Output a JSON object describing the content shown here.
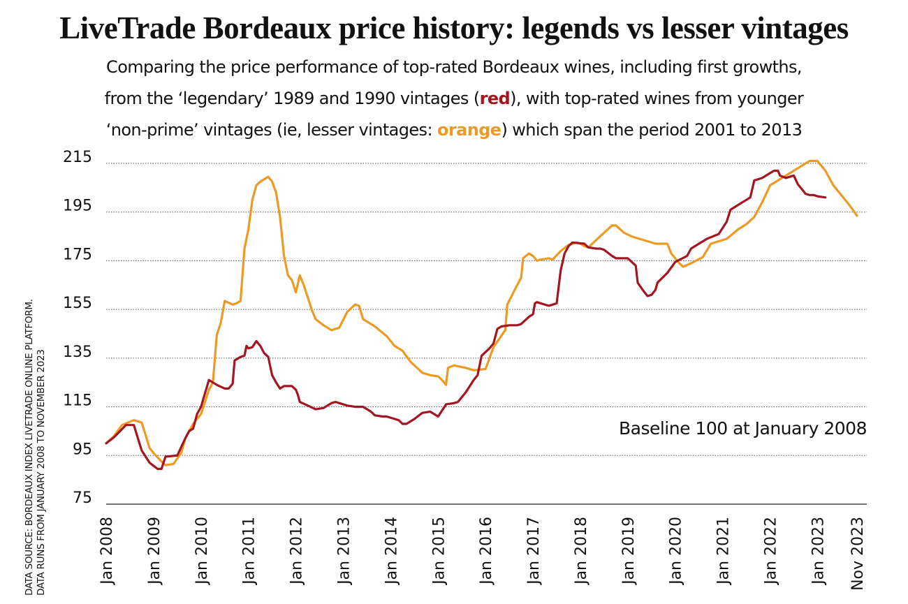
{
  "title": "LiveTrade Bordeaux price history: legends vs lesser vintages",
  "subtitle": {
    "line1": "Comparing the price performance of top-rated Bordeaux wines, including first growths,",
    "line2_pre": "from the ‘legendary’ 1989 and 1990 vintages (",
    "line2_red": "red",
    "line2_post": "), with top-rated wines from younger",
    "line3_pre": "‘non-prime’ vintages (ie, lesser vintages: ",
    "line3_orange": "orange",
    "line3_post": ") which span the period 2001 to 2013"
  },
  "source": {
    "line1": "DATA SOURCE: BORDEAUX INDEX LIVETRADE ONLINE PLATFORM.",
    "line2": "DATA RUNS FROM JANUARY 2008 TO NOVEMBER 2023"
  },
  "colors": {
    "red": "#a3161f",
    "orange": "#ec9a24",
    "grid": "#555555",
    "text": "#111111"
  },
  "chart_data": {
    "type": "line",
    "title": "LiveTrade Bordeaux price history: legends vs lesser vintages",
    "xlabel": "",
    "ylabel": "",
    "ylim": [
      75,
      215
    ],
    "yticks": [
      "215",
      "195",
      "175",
      "155",
      "135",
      "115",
      "95",
      "75"
    ],
    "x_tick_labels": [
      "Jan 2008",
      "Jan 2009",
      "Jan 2010",
      "Jan 2011",
      "Jan 2012",
      "Jan 2013",
      "Jan 2014",
      "Jan 2015",
      "Jan 2016",
      "Jan 2017",
      "Jan 2018",
      "Jan 2019",
      "Jan 2020",
      "Jan 2021",
      "Jan 2022",
      "Jan 2023",
      "Nov 2023"
    ],
    "x_tick_positions": [
      0,
      12,
      24,
      36,
      48,
      60,
      72,
      84,
      96,
      108,
      120,
      132,
      144,
      156,
      168,
      180,
      190
    ],
    "x_unit": "months since Jan 2008",
    "annotation": "Baseline 100 at January 2008",
    "grid": "horizontal dotted",
    "series": [
      {
        "name": "Legendary 1989 and 1990 vintages",
        "color": "#a3161f",
        "points": [
          [
            0,
            100
          ],
          [
            2,
            102.5
          ],
          [
            5,
            107.5
          ],
          [
            7,
            107.5
          ],
          [
            9,
            97
          ],
          [
            11,
            92
          ],
          [
            13,
            89.5
          ],
          [
            14,
            89.5
          ],
          [
            15,
            94.5
          ],
          [
            18,
            95
          ],
          [
            20,
            102
          ],
          [
            21,
            105
          ],
          [
            22,
            106
          ],
          [
            23,
            112
          ],
          [
            24,
            115
          ],
          [
            26,
            126
          ],
          [
            28,
            124
          ],
          [
            30,
            122.5
          ],
          [
            31,
            122.5
          ],
          [
            32,
            124.5
          ],
          [
            32.5,
            134
          ],
          [
            34,
            135.5
          ],
          [
            35,
            136
          ],
          [
            35.5,
            140
          ],
          [
            36,
            139
          ],
          [
            37,
            139.5
          ],
          [
            38,
            142
          ],
          [
            39,
            140
          ],
          [
            40,
            137
          ],
          [
            41,
            135.5
          ],
          [
            42,
            128
          ],
          [
            43,
            125
          ],
          [
            44,
            122.5
          ],
          [
            45,
            123.5
          ],
          [
            47,
            123.5
          ],
          [
            48,
            122
          ],
          [
            48.5,
            120
          ],
          [
            49,
            117
          ],
          [
            51,
            115.5
          ],
          [
            53,
            114
          ],
          [
            55,
            114.5
          ],
          [
            57,
            116.5
          ],
          [
            58,
            117
          ],
          [
            59,
            116.5
          ],
          [
            61,
            115.5
          ],
          [
            63,
            115
          ],
          [
            65,
            115
          ],
          [
            67,
            113
          ],
          [
            68,
            111.5
          ],
          [
            70,
            111
          ],
          [
            71,
            111
          ],
          [
            73,
            110
          ],
          [
            74,
            109.5
          ],
          [
            75,
            108
          ],
          [
            76,
            108
          ],
          [
            78,
            110
          ],
          [
            80,
            112.5
          ],
          [
            82,
            113
          ],
          [
            84,
            111
          ],
          [
            86,
            116
          ],
          [
            88,
            116.5
          ],
          [
            89,
            117
          ],
          [
            91,
            121
          ],
          [
            93,
            126
          ],
          [
            94,
            128
          ],
          [
            95,
            136
          ],
          [
            97,
            139
          ],
          [
            98,
            141
          ],
          [
            99,
            147
          ],
          [
            100,
            148
          ],
          [
            102,
            148.5
          ],
          [
            104,
            148.5
          ],
          [
            105,
            149
          ],
          [
            107,
            152
          ],
          [
            108,
            153
          ],
          [
            108.5,
            157.5
          ],
          [
            109,
            158
          ],
          [
            111,
            157
          ],
          [
            112,
            156.5
          ],
          [
            113,
            157
          ],
          [
            114,
            157.5
          ],
          [
            115,
            171
          ],
          [
            116,
            178
          ],
          [
            117,
            181
          ],
          [
            118,
            182.5
          ],
          [
            121,
            182
          ],
          [
            122,
            180.5
          ],
          [
            124,
            180
          ],
          [
            125,
            180
          ],
          [
            126,
            179.5
          ],
          [
            128,
            177
          ],
          [
            129,
            176
          ],
          [
            131,
            176
          ],
          [
            132,
            176
          ],
          [
            133,
            174.5
          ],
          [
            134,
            173
          ],
          [
            134.5,
            166
          ],
          [
            136,
            162.5
          ],
          [
            137,
            160.5
          ],
          [
            138,
            161
          ],
          [
            139,
            163
          ],
          [
            139.5,
            166
          ],
          [
            142,
            170
          ],
          [
            144,
            174.5
          ],
          [
            147,
            177
          ],
          [
            148,
            180
          ],
          [
            150,
            182
          ],
          [
            152,
            184
          ],
          [
            155,
            186
          ],
          [
            157,
            191
          ],
          [
            158,
            196
          ],
          [
            161,
            199
          ],
          [
            163,
            201
          ],
          [
            164,
            208
          ],
          [
            166,
            209
          ],
          [
            168,
            211
          ],
          [
            169,
            212
          ],
          [
            170,
            212
          ],
          [
            170.5,
            210
          ],
          [
            172,
            209
          ],
          [
            173,
            209.5
          ],
          [
            174,
            210
          ],
          [
            175,
            206.5
          ],
          [
            176,
            204.5
          ],
          [
            177,
            202.5
          ],
          [
            178,
            202
          ],
          [
            179,
            202
          ],
          [
            180,
            201.5
          ],
          [
            182,
            201
          ]
        ]
      },
      {
        "name": "Lesser vintages 2001 to 2013",
        "color": "#ec9a24",
        "points": [
          [
            0,
            100
          ],
          [
            2,
            103
          ],
          [
            4,
            107.5
          ],
          [
            7,
            109.5
          ],
          [
            9,
            108.5
          ],
          [
            11,
            98
          ],
          [
            12,
            96
          ],
          [
            14,
            92.5
          ],
          [
            15,
            91
          ],
          [
            17,
            91.5
          ],
          [
            19,
            96
          ],
          [
            20,
            102
          ],
          [
            21,
            105
          ],
          [
            22,
            108
          ],
          [
            24,
            112
          ],
          [
            26,
            122
          ],
          [
            27,
            125
          ],
          [
            28,
            144.5
          ],
          [
            29,
            149.5
          ],
          [
            30,
            158.5
          ],
          [
            32,
            157
          ],
          [
            33,
            157.5
          ],
          [
            34,
            158.5
          ],
          [
            35,
            180
          ],
          [
            36,
            188
          ],
          [
            37,
            200
          ],
          [
            38,
            206
          ],
          [
            39,
            207.5
          ],
          [
            40,
            208.5
          ],
          [
            41,
            209.5
          ],
          [
            42,
            207.5
          ],
          [
            43,
            203
          ],
          [
            44,
            193
          ],
          [
            45,
            177
          ],
          [
            46,
            169
          ],
          [
            47,
            167
          ],
          [
            48,
            162
          ],
          [
            49,
            169
          ],
          [
            50,
            165
          ],
          [
            52,
            155
          ],
          [
            53,
            151
          ],
          [
            55,
            148.5
          ],
          [
            57,
            146.5
          ],
          [
            59,
            147.5
          ],
          [
            61,
            154
          ],
          [
            63,
            157
          ],
          [
            64,
            156.5
          ],
          [
            65,
            151
          ],
          [
            68,
            148
          ],
          [
            71,
            144
          ],
          [
            73,
            140
          ],
          [
            75,
            138
          ],
          [
            77,
            133.5
          ],
          [
            79,
            130.5
          ],
          [
            80,
            129
          ],
          [
            82,
            128
          ],
          [
            84,
            127.5
          ],
          [
            85,
            126
          ],
          [
            86,
            124
          ],
          [
            86.5,
            131
          ],
          [
            88,
            132
          ],
          [
            91,
            131
          ],
          [
            93,
            130
          ],
          [
            96,
            130.5
          ],
          [
            98,
            139.5
          ],
          [
            101,
            146.5
          ],
          [
            101.5,
            157
          ],
          [
            104,
            165
          ],
          [
            105,
            168
          ],
          [
            105.5,
            176
          ],
          [
            107,
            178
          ],
          [
            108,
            177
          ],
          [
            109,
            175
          ],
          [
            110,
            175.5
          ],
          [
            112,
            176
          ],
          [
            113,
            175.5
          ],
          [
            115,
            179
          ],
          [
            117,
            181.5
          ],
          [
            119,
            182.5
          ],
          [
            120,
            182
          ],
          [
            121,
            181
          ],
          [
            122,
            180.5
          ],
          [
            125,
            185
          ],
          [
            127,
            188
          ],
          [
            128,
            189.5
          ],
          [
            129,
            189.5
          ],
          [
            131,
            186.5
          ],
          [
            133,
            185
          ],
          [
            135,
            184
          ],
          [
            137,
            183
          ],
          [
            139,
            182
          ],
          [
            141,
            182
          ],
          [
            142,
            182
          ],
          [
            143,
            178
          ],
          [
            145,
            174
          ],
          [
            146,
            172.5
          ],
          [
            148,
            174
          ],
          [
            151,
            176.5
          ],
          [
            153,
            182
          ],
          [
            155,
            183
          ],
          [
            157,
            184
          ],
          [
            160,
            188
          ],
          [
            162,
            190
          ],
          [
            164,
            193
          ],
          [
            166,
            199
          ],
          [
            168,
            206
          ],
          [
            171,
            209
          ],
          [
            174,
            212
          ],
          [
            176,
            214
          ],
          [
            178,
            216
          ],
          [
            180,
            216
          ],
          [
            182,
            212
          ],
          [
            184,
            206
          ],
          [
            186,
            202
          ],
          [
            188,
            198
          ],
          [
            190,
            193.5
          ]
        ]
      }
    ]
  }
}
